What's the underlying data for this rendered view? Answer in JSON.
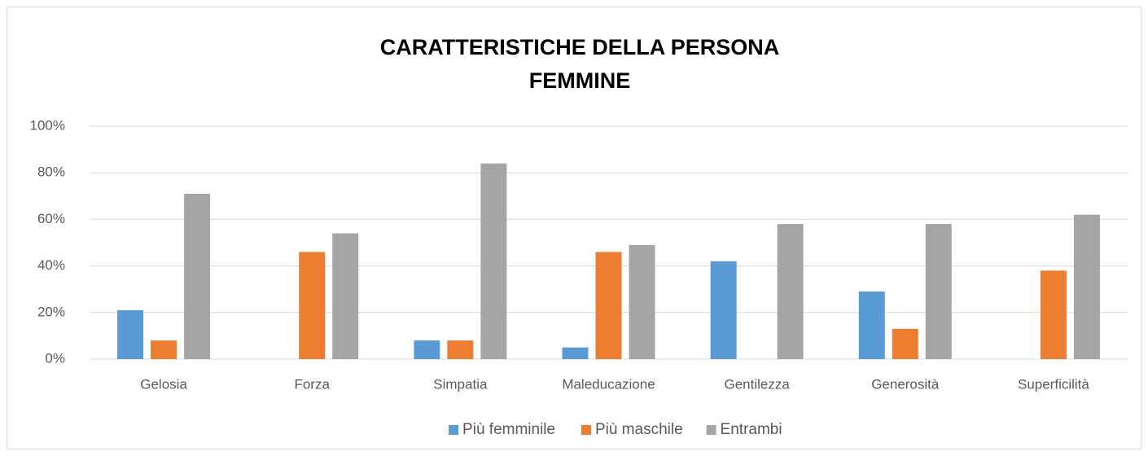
{
  "chart_data": {
    "type": "bar",
    "title": "CARATTERISTICHE DELLA PERSONA",
    "subtitle": "FEMMINE",
    "categories": [
      "Gelosia",
      "Forza",
      "Simpatia",
      "Maleducazione",
      "Gentilezza",
      "Generosità",
      "Superficilità"
    ],
    "series": [
      {
        "name": "Più femminile",
        "color": "#5b9bd5",
        "values": [
          21,
          0,
          8,
          5,
          42,
          29,
          0
        ]
      },
      {
        "name": "Più maschile",
        "color": "#ed7d31",
        "values": [
          8,
          46,
          8,
          46,
          0,
          13,
          38
        ]
      },
      {
        "name": "Entrambi",
        "color": "#a5a5a5",
        "values": [
          71,
          54,
          84,
          49,
          58,
          58,
          62
        ]
      }
    ],
    "ylim": [
      0,
      100
    ],
    "yticks": [
      {
        "value": 0,
        "label": "0%"
      },
      {
        "value": 20,
        "label": "20%"
      },
      {
        "value": 40,
        "label": "40%"
      },
      {
        "value": 60,
        "label": "60%"
      },
      {
        "value": 80,
        "label": "80%"
      },
      {
        "value": 100,
        "label": "100%"
      }
    ],
    "grid": true,
    "legend": "bottom"
  }
}
